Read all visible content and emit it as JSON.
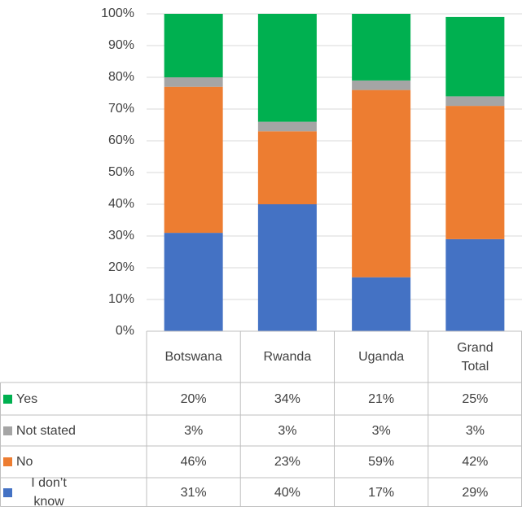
{
  "chart_data": {
    "type": "stacked_bar",
    "categories": [
      "Botswana",
      "Rwanda",
      "Uganda",
      "Grand Total"
    ],
    "series": [
      {
        "name": "Yes",
        "color": "#00b050",
        "values": [
          20,
          34,
          21,
          25
        ],
        "value_labels": [
          "20%",
          "34%",
          "21%",
          "25%"
        ]
      },
      {
        "name": "Not stated",
        "color": "#a5a5a5",
        "values": [
          3,
          3,
          3,
          3
        ],
        "value_labels": [
          "3%",
          "3%",
          "3%",
          "3%"
        ]
      },
      {
        "name": "No",
        "color": "#ed7d31",
        "values": [
          46,
          23,
          59,
          42
        ],
        "value_labels": [
          "46%",
          "23%",
          "59%",
          "42%"
        ]
      },
      {
        "name": "I don’t know",
        "color": "#4472c4",
        "values": [
          31,
          40,
          17,
          29
        ],
        "value_labels": [
          "31%",
          "40%",
          "17%",
          "29%"
        ]
      }
    ],
    "ylim": [
      0,
      100
    ],
    "yticks": [
      {
        "value": 0,
        "label": "0%"
      },
      {
        "value": 10,
        "label": "10%"
      },
      {
        "value": 20,
        "label": "20%"
      },
      {
        "value": 30,
        "label": "30%"
      },
      {
        "value": 40,
        "label": "40%"
      },
      {
        "value": 50,
        "label": "50%"
      },
      {
        "value": 60,
        "label": "60%"
      },
      {
        "value": 70,
        "label": "70%"
      },
      {
        "value": 80,
        "label": "80%"
      },
      {
        "value": 90,
        "label": "90%"
      },
      {
        "value": 100,
        "label": "100%"
      }
    ],
    "grid": true
  }
}
